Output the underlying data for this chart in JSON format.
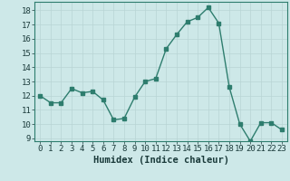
{
  "x": [
    0,
    1,
    2,
    3,
    4,
    5,
    6,
    7,
    8,
    9,
    10,
    11,
    12,
    13,
    14,
    15,
    16,
    17,
    18,
    19,
    20,
    21,
    22,
    23
  ],
  "y": [
    12,
    11.5,
    11.5,
    12.5,
    12.2,
    12.3,
    11.7,
    10.3,
    10.4,
    11.9,
    13.0,
    13.2,
    15.3,
    16.3,
    17.2,
    17.5,
    18.2,
    17.1,
    12.6,
    10.0,
    8.8,
    10.1,
    10.1,
    9.6
  ],
  "line_color": "#2e7d6e",
  "bg_color": "#cde8e8",
  "grid_color": "#b8d4d4",
  "xlabel": "Humidex (Indice chaleur)",
  "ylim": [
    8.8,
    18.6
  ],
  "xlim": [
    -0.5,
    23.5
  ],
  "yticks": [
    9,
    10,
    11,
    12,
    13,
    14,
    15,
    16,
    17,
    18
  ],
  "xticks": [
    0,
    1,
    2,
    3,
    4,
    5,
    6,
    7,
    8,
    9,
    10,
    11,
    12,
    13,
    14,
    15,
    16,
    17,
    18,
    19,
    20,
    21,
    22,
    23
  ],
  "xlabel_fontsize": 7.5,
  "tick_fontsize": 6.5,
  "marker_size": 2.5,
  "line_width": 1.0
}
